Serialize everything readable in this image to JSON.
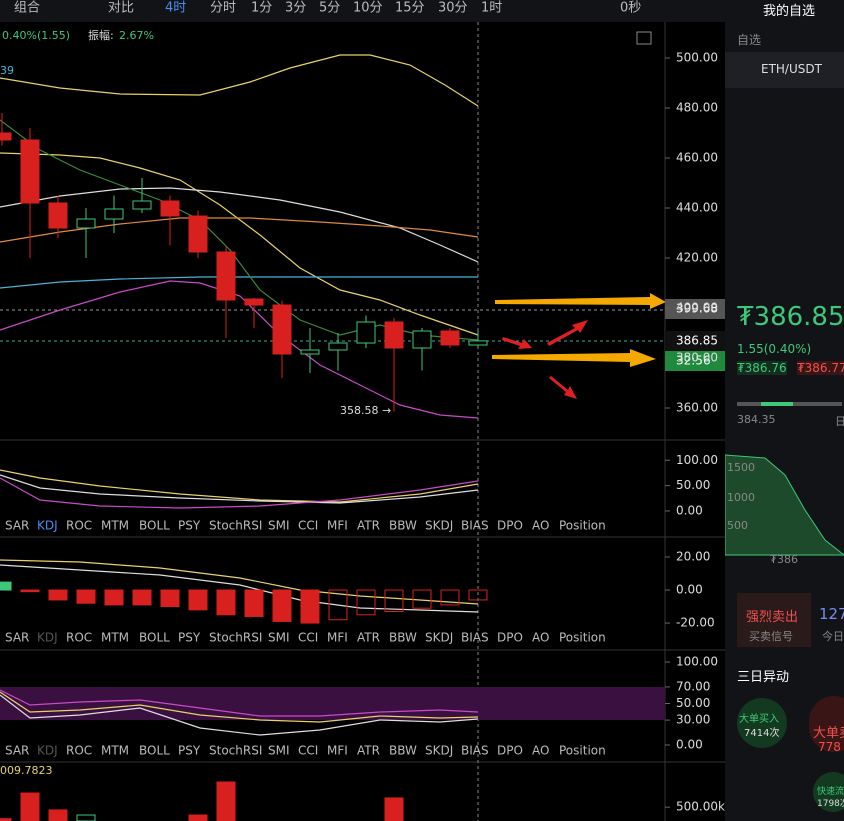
{
  "toolbar": {
    "items": [
      "组合",
      "对比"
    ],
    "intervals": [
      "4时",
      "分时",
      "1分",
      "3分",
      "5分",
      "10分",
      "15分",
      "30分",
      "1时"
    ],
    "countdown": "0秒"
  },
  "stats": {
    "change": "0.40%(1.55)",
    "amplitude_label": "振幅:",
    "amplitude": "2.67%",
    "indicator": "39"
  },
  "price_axis": {
    "ylim": [
      347.2,
      514.4
    ],
    "ticks": [
      {
        "value": 500,
        "label": "500.00"
      },
      {
        "value": 480,
        "label": "480.00"
      },
      {
        "value": 460,
        "label": "460.00"
      },
      {
        "value": 440,
        "label": "440.00"
      },
      {
        "value": 420,
        "label": "420.00"
      },
      {
        "value": 400,
        "label": "400.00"
      },
      {
        "value": 380,
        "label": "380.00"
      },
      {
        "value": 360,
        "label": "360.00"
      }
    ]
  },
  "price_tags": {
    "high_line": "399.68",
    "last": "386.85",
    "countdown": "32:56",
    "low_note": "358.58 →"
  },
  "candles": {
    "open": [
      470,
      467.2,
      442,
      432,
      435.6,
      439.6,
      442.8,
      436.8,
      422.4,
      403.6,
      401.2,
      381.6,
      383.2,
      386,
      394.4,
      384,
      390.8,
      385.2
    ],
    "high": [
      478,
      472,
      445,
      440,
      445,
      452,
      445,
      439,
      425,
      404,
      403,
      392,
      390,
      397,
      396,
      392,
      392,
      391
    ],
    "low": [
      465,
      420,
      428,
      420,
      430,
      438,
      425,
      420,
      388,
      392,
      372,
      374,
      375,
      384,
      358.58,
      375,
      384,
      384
    ],
    "close": [
      467.2,
      442,
      432,
      435.6,
      439.6,
      442.8,
      436.8,
      422.4,
      403.2,
      401.2,
      381.6,
      383.2,
      386,
      394.4,
      384,
      390.8,
      385.2,
      386.85
    ]
  },
  "indicator_tabs": [
    "SAR",
    "KDJ",
    "ROC",
    "MTM",
    "BOLL",
    "PSY",
    "StochRSI",
    "SMI",
    "CCI",
    "MFI",
    "ATR",
    "BBW",
    "SKDJ",
    "BIAS",
    "DPO",
    "AO",
    "Position"
  ],
  "panel_kdj": {
    "ylim": [
      -10,
      140
    ],
    "ticks": [
      {
        "value": 100,
        "label": "100.00"
      },
      {
        "value": 50,
        "label": "50.00"
      },
      {
        "value": 0,
        "label": "0.00"
      }
    ]
  },
  "panel_macd": {
    "ylim": [
      -24.2,
      32.1
    ],
    "ticks": [
      {
        "value": 20,
        "label": "20.00"
      },
      {
        "value": 0,
        "label": "0.00"
      },
      {
        "value": -20,
        "label": "-20.00"
      }
    ],
    "histogram": [
      4.8,
      -1,
      -6,
      -8,
      -9,
      -9,
      -10,
      -12,
      -15,
      -16,
      -19,
      -20,
      -18,
      -15,
      -13,
      -11,
      -9,
      -6
    ]
  },
  "panel_rsi": {
    "ylim": [
      -3.6,
      114.5
    ],
    "ticks": [
      {
        "value": 100,
        "label": "100.00"
      },
      {
        "value": 70,
        "label": "70.00"
      },
      {
        "value": 50,
        "label": "50.00"
      },
      {
        "value": 30,
        "label": "30.00"
      },
      {
        "value": 0,
        "label": "0.00"
      }
    ]
  },
  "panel_volume": {
    "label": "009.7823",
    "ylim": [
      200000,
      1480000
    ],
    "ticks": [
      {
        "value": 500000,
        "label": "500.00k"
      }
    ],
    "values": [
      250000,
      807000,
      440000,
      330000,
      180000,
      180000,
      180000,
      330000,
      1046000,
      180000,
      180000,
      180000,
      180000,
      180000,
      700000,
      180000,
      180000,
      180000
    ]
  },
  "sidebar": {
    "title": "我的自选",
    "filter": "自选",
    "symbol": "ETH/USDT",
    "price": "₮386.85",
    "change": "1.55(0.40%)",
    "bid": "₮386.76",
    "ask": "₮386.77",
    "range_low": "384.35",
    "range_unit": "日",
    "depth_ticks": [
      "1500",
      "1000",
      "500"
    ],
    "depth_price": "₮386",
    "signal": "强烈卖出",
    "signal_label": "买卖信号",
    "count": "127",
    "today": "今日",
    "section": "三日异动",
    "bubble_buy": "大单买入",
    "bubble_buy_count": "7414次",
    "bubble_sell": "大单卖",
    "bubble_sell_count": "778",
    "bubble_fast": "快速流",
    "bubble_fast_count": "1798次"
  }
}
